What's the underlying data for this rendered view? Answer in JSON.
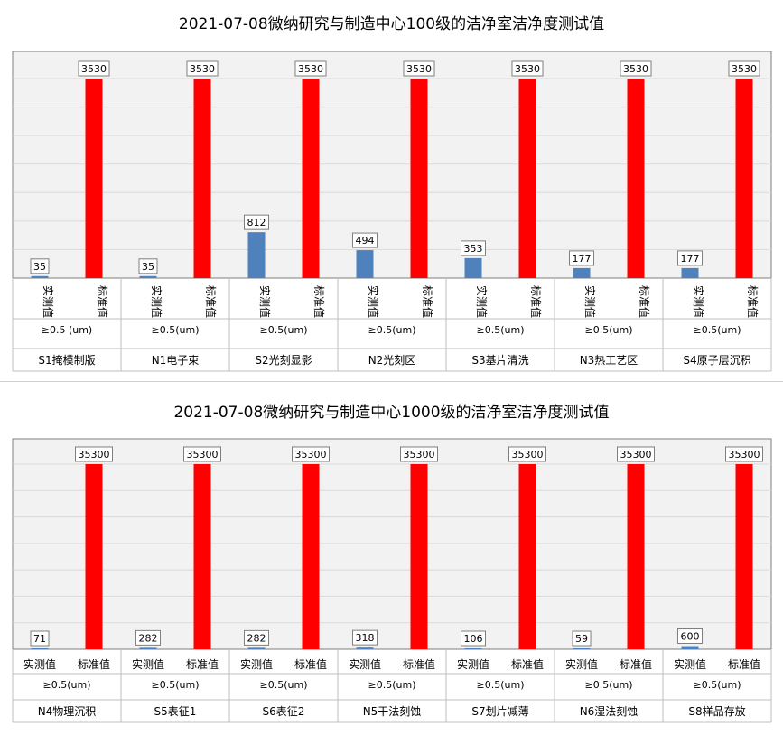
{
  "chart_data": [
    {
      "type": "bar",
      "title": "2021-07-08微纳研究与制造中心100级的洁净室洁净度测试值",
      "series_labels": [
        "实测值",
        "标准值"
      ],
      "colors": {
        "measured": "#4f81bd",
        "standard": "#ff0000"
      },
      "ylim": [
        0,
        3530
      ],
      "groups": [
        {
          "location": "S1掩模制版",
          "size": "≥0.5  (um)",
          "measured": 35,
          "standard": 3530
        },
        {
          "location": "N1电子束",
          "size": "≥0.5(um)",
          "measured": 35,
          "standard": 3530
        },
        {
          "location": "S2光刻显影",
          "size": "≥0.5(um)",
          "measured": 812,
          "standard": 3530
        },
        {
          "location": "N2光刻区",
          "size": "≥0.5(um)",
          "measured": 494,
          "standard": 3530
        },
        {
          "location": "S3基片清洗",
          "size": "≥0.5(um)",
          "measured": 353,
          "standard": 3530
        },
        {
          "location": "N3热工艺区",
          "size": "≥0.5(um)",
          "measured": 177,
          "standard": 3530
        },
        {
          "location": "S4原子层沉积",
          "size": "≥0.5(um)",
          "measured": 177,
          "standard": 3530
        }
      ]
    },
    {
      "type": "bar",
      "title": "2021-07-08微纳研究与制造中心1000级的洁净室洁净度测试值",
      "series_labels": [
        "实测值",
        "标准值"
      ],
      "colors": {
        "measured": "#4f81bd",
        "standard": "#ff0000"
      },
      "ylim": [
        0,
        35300
      ],
      "groups": [
        {
          "location": "N4物理沉积",
          "size": "≥0.5(um)",
          "measured": 71,
          "standard": 35300
        },
        {
          "location": "S5表征1",
          "size": "≥0.5(um)",
          "measured": 282,
          "standard": 35300
        },
        {
          "location": "S6表征2",
          "size": "≥0.5(um)",
          "measured": 282,
          "standard": 35300
        },
        {
          "location": "N5干法刻蚀",
          "size": "≥0.5(um)",
          "measured": 318,
          "standard": 35300
        },
        {
          "location": "S7划片减薄",
          "size": "≥0.5(um)",
          "measured": 106,
          "standard": 35300
        },
        {
          "location": "N6湿法刻蚀",
          "size": "≥0.5(um)",
          "measured": 59,
          "standard": 35300
        },
        {
          "location": "S8样品存放",
          "size": "≥0.5(um)",
          "measured": 600,
          "standard": 35300
        }
      ]
    }
  ]
}
